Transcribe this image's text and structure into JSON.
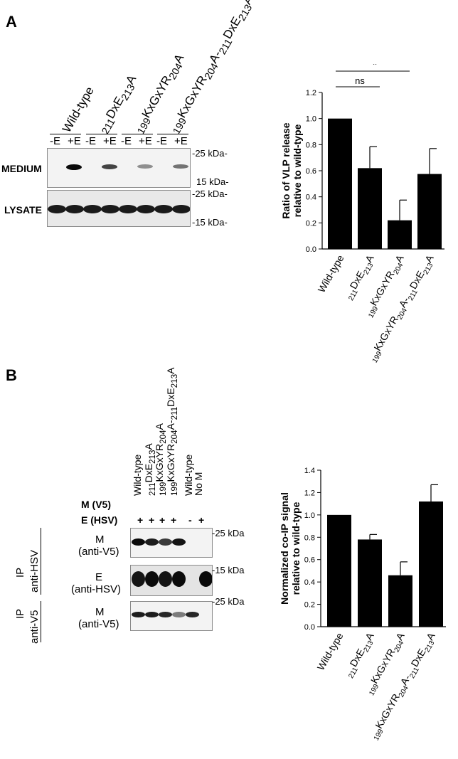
{
  "panelA": {
    "label": "A",
    "lanes": [
      "Wild-type",
      "<sub>211</sub>DxE<sub>213</sub>A",
      "<sub>199</sub>KxGxYR<sub>204</sub>A",
      "<sub>199</sub>KxGxYR<sub>204</sub>A-<sub>211</sub>DxE<sub>213</sub>A"
    ],
    "pm": [
      "-E",
      "+E",
      "-E",
      "+E",
      "-E",
      "+E",
      "-E",
      "+E"
    ],
    "row_medium": "MEDIUM",
    "row_lysate": "LYSATE",
    "kda": [
      "-25 kDa-",
      "15 kDa-",
      "-25 kDa-",
      "-15 kDa-"
    ],
    "band_intensity_medium": [
      0,
      1.0,
      0,
      0.7,
      0,
      0.3,
      0,
      0.45
    ],
    "band_intensity_lysate": [
      1,
      1,
      1,
      1,
      1,
      1,
      1,
      1
    ]
  },
  "panelB": {
    "label": "B",
    "lanes": [
      "Wild-type",
      "<sub>211</sub>DxE<sub>213</sub>A",
      "<sub>199</sub>KxGxYR<sub>204</sub>A",
      "<sub>199</sub>KxGxYR<sub>204</sub>A-<sub>211</sub>DxE<sub>213</sub>A",
      "Wild-type",
      "No M"
    ],
    "row_m": "M (V5)",
    "row_e": "E (HSV)",
    "e_signs": [
      "+",
      "+",
      "+",
      "+",
      "-",
      "+"
    ],
    "ip_hsv_1": "IP",
    "ip_hsv_2": "anti-HSV",
    "ip_v5_1": "IP",
    "ip_v5_2": "anti-V5",
    "blot1_1": "M",
    "blot1_2": "(anti-V5)",
    "blot2_1": "E",
    "blot2_2": "(anti-HSV)",
    "blot3_1": "M",
    "blot3_2": "(anti-V5)",
    "kda": [
      "-25 kDa",
      "-15 kDa",
      "-25 kDa"
    ]
  },
  "chart_data": [
    {
      "type": "bar",
      "categories": [
        "Wild-type",
        "<sub>211</sub>DxE<sub>213</sub>A",
        "<sub>199</sub>KxGxYR<sub>204</sub>A",
        "<sub>199</sub>KxGxYR<sub>204</sub>A-<sub>211</sub>DxE<sub>213</sub>A"
      ],
      "values": [
        1.0,
        0.62,
        0.22,
        0.575
      ],
      "errors": [
        0,
        0.165,
        0.155,
        0.195
      ],
      "ylabel_1": "Ratio of VLP release",
      "ylabel_2": "relative to wild-type",
      "ylim": [
        0,
        1.2
      ],
      "yticks": [
        "0.0",
        "0.2",
        "0.4",
        "0.6",
        "0.8",
        "1.0",
        "1.2"
      ],
      "significance": [
        {
          "label": "ns",
          "from": 0,
          "to": 1,
          "level": 1
        },
        {
          "label": "*",
          "from": 0,
          "to": 2,
          "level": 2
        },
        {
          "label": "ns",
          "from": 0,
          "to": 3,
          "level": 3
        }
      ],
      "bar_color": "#000000"
    },
    {
      "type": "bar",
      "categories": [
        "Wild-type",
        "<sub>211</sub>DxE<sub>213</sub>A",
        "<sub>199</sub>KxGxYR<sub>204</sub>A",
        "<sub>199</sub>KxGxYR<sub>204</sub>A-<sub>211</sub>DxE<sub>213</sub>A"
      ],
      "values": [
        1.0,
        0.78,
        0.46,
        1.12
      ],
      "errors": [
        0,
        0.045,
        0.12,
        0.15
      ],
      "ylabel_1": "Normalized co-IP signal",
      "ylabel_2": "relative to wild-type",
      "ylim": [
        0,
        1.4
      ],
      "yticks": [
        "0.0",
        "0.2",
        "0.4",
        "0.6",
        "0.8",
        "1.0",
        "1.2",
        "1.4"
      ],
      "bar_color": "#000000"
    }
  ]
}
